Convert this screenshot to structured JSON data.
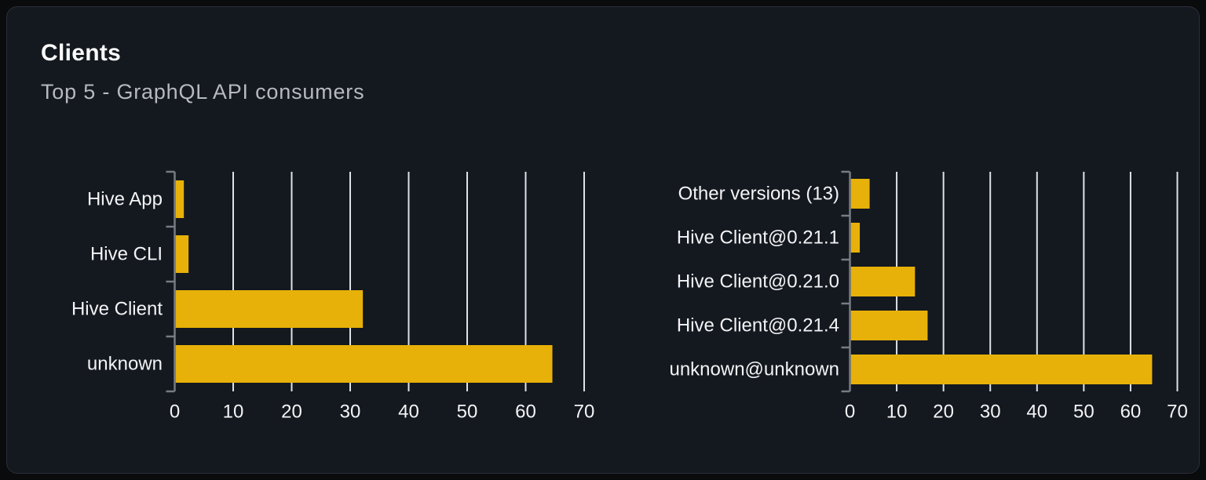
{
  "header": {
    "title": "Clients",
    "subtitle": "Top 5 - GraphQL API consumers"
  },
  "colors": {
    "bar": "#e7b109",
    "gridline": "#dde1e9",
    "axis": "#767b84",
    "tick_label": "#f3f4f6",
    "category_label": "#f3f4f6",
    "title": "#fafafa",
    "subtitle": "#b6bac0",
    "card_background": "#14181f",
    "card_border": "#2a2f37",
    "page_background": "#0a0b0d"
  },
  "chart_data": [
    {
      "type": "bar",
      "orientation": "horizontal",
      "categories": [
        "Hive App",
        "Hive CLI",
        "Hive Client",
        "unknown"
      ],
      "values": [
        1.4,
        2.2,
        32,
        64.4
      ],
      "xlabel": "",
      "ylabel": "",
      "xlim": [
        0,
        70
      ],
      "xticks": [
        0,
        10,
        20,
        30,
        40,
        50,
        60,
        70
      ],
      "grid": true,
      "legend": false
    },
    {
      "type": "bar",
      "orientation": "horizontal",
      "categories": [
        "Other versions (13)",
        "Hive Client@0.21.1",
        "Hive Client@0.21.0",
        "Hive Client@0.21.4",
        "unknown@unknown"
      ],
      "values": [
        4,
        1.9,
        13.7,
        16.4,
        64.4
      ],
      "xlabel": "",
      "ylabel": "",
      "xlim": [
        0,
        70
      ],
      "xticks": [
        0,
        10,
        20,
        30,
        40,
        50,
        60,
        70
      ],
      "grid": true,
      "legend": false
    }
  ]
}
